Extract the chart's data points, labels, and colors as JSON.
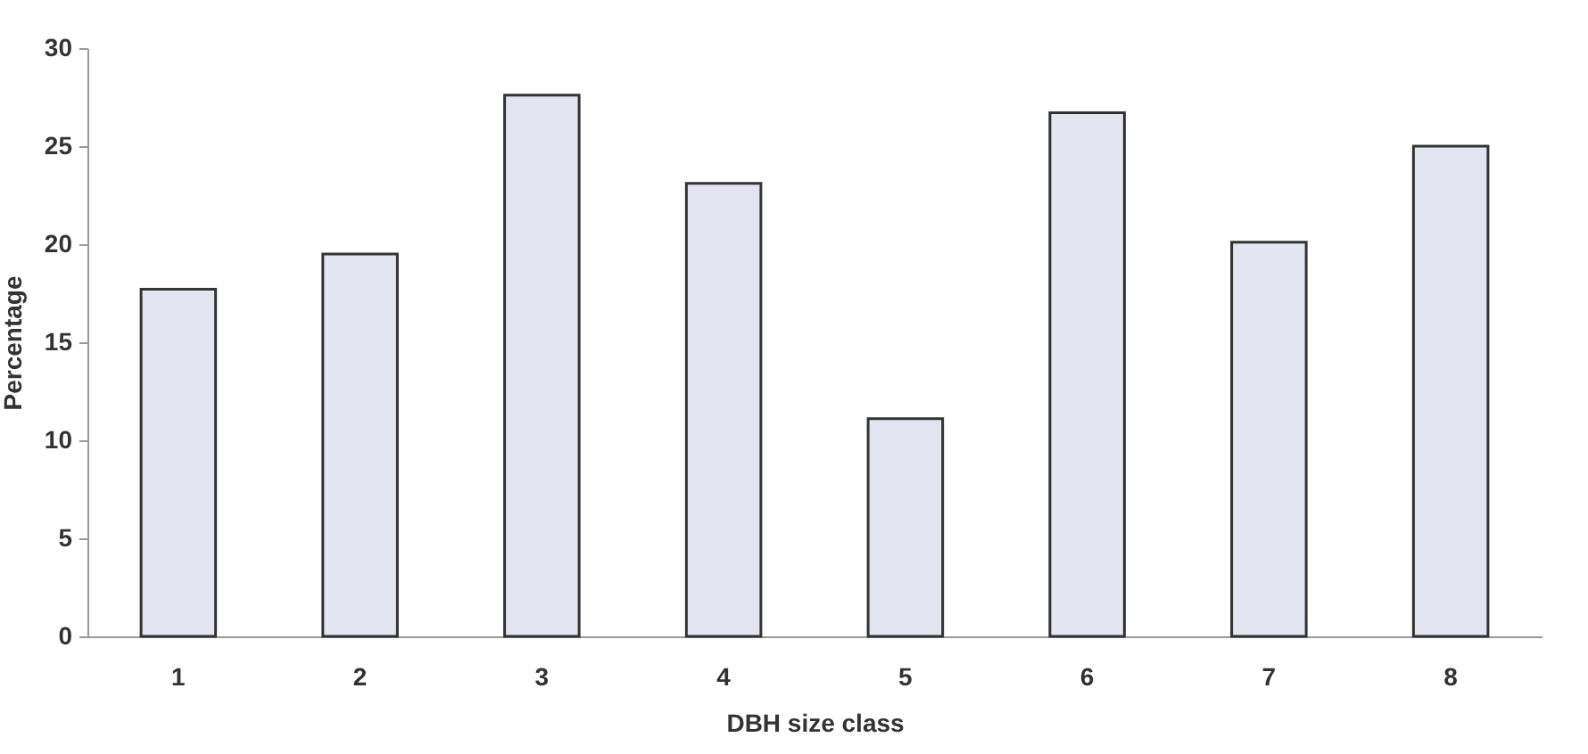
{
  "chart_data": {
    "type": "bar",
    "xlabel": "DBH size class",
    "ylabel": "Percentage",
    "categories": [
      "1",
      "2",
      "3",
      "4",
      "5",
      "6",
      "7",
      "8"
    ],
    "values": [
      17.7,
      19.5,
      27.6,
      23.1,
      11.1,
      26.7,
      20.1,
      25.0
    ],
    "color": "#e3e5f1",
    "ylim": [
      0,
      30
    ],
    "yticks": [
      0,
      5,
      10,
      15,
      20,
      25,
      30
    ],
    "grid": false
  }
}
